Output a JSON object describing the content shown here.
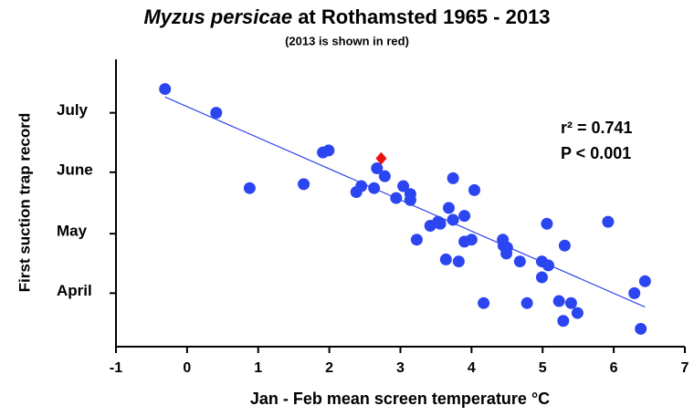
{
  "chart_data": {
    "type": "scatter",
    "title": {
      "species": "Myzus persicae",
      "rest": " at Rothamsted 1965 - 2013"
    },
    "subtitle": "(2013 is shown in red)",
    "x_label": "Jan - Feb mean screen temperature °C",
    "y_label": "First suction trap record",
    "annotations": [
      "r² = 0.741",
      "P < 0.001"
    ],
    "xlim": [
      -1,
      7
    ],
    "xticks": [
      -1,
      0,
      1,
      2,
      3,
      4,
      5,
      6,
      7
    ],
    "ylim": [
      78,
      223
    ],
    "yticks": [
      {
        "value": 105,
        "label": "April"
      },
      {
        "value": 135,
        "label": "May"
      },
      {
        "value": 166,
        "label": "June"
      },
      {
        "value": 196,
        "label": "July"
      }
    ],
    "series": [
      {
        "color": "#2b45f0",
        "x": [
          -0.31,
          0.41,
          0.88,
          1.64,
          1.91,
          1.99,
          2.38,
          2.45,
          2.63,
          2.67,
          2.78,
          2.94,
          3.04,
          3.14,
          3.14,
          3.23,
          3.42,
          3.53,
          3.56,
          3.64,
          3.68,
          3.74,
          3.74,
          3.82,
          3.9,
          3.9,
          4.0,
          4.04,
          4.17,
          4.44,
          4.45,
          4.49,
          4.5,
          4.68,
          4.78,
          4.99,
          4.99,
          5.06,
          5.08,
          5.23,
          5.29,
          5.31,
          5.4,
          5.49,
          5.92,
          6.29,
          6.38,
          6.44
        ],
        "values": [
          208,
          196,
          158,
          160,
          176,
          177,
          156,
          159,
          158,
          168,
          164,
          153,
          159,
          155,
          152,
          132,
          139,
          141,
          140,
          122,
          148,
          163,
          142,
          121,
          144,
          131,
          132,
          157,
          100,
          132,
          129,
          125,
          128,
          121,
          100,
          121,
          113,
          140,
          119,
          101,
          91,
          129,
          100,
          95,
          141,
          105,
          87,
          111
        ]
      },
      {
        "color": "#ee1111",
        "marker": "diamond",
        "x": [
          2.73
        ],
        "values": [
          173
        ]
      }
    ],
    "trendline": {
      "color": "#3344ee",
      "x": [
        -0.31,
        6.44
      ],
      "values": [
        204,
        98
      ]
    }
  }
}
